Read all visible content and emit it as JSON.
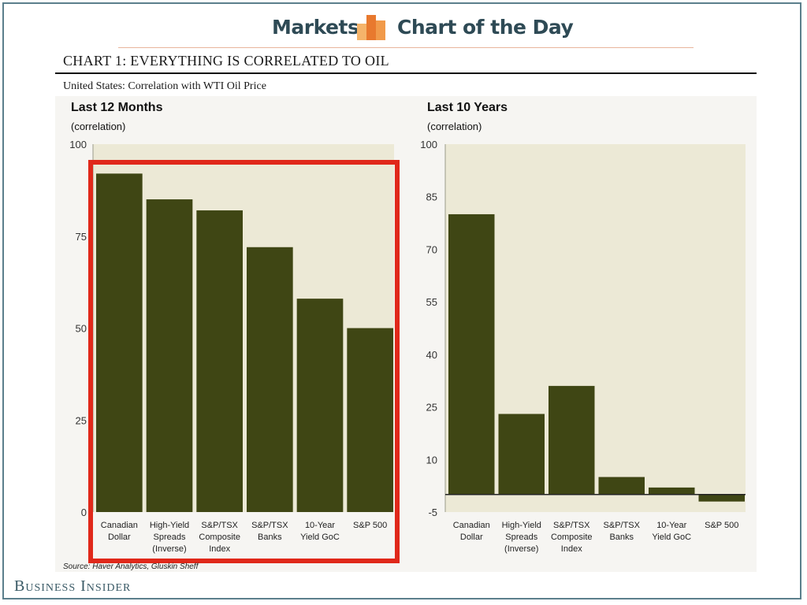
{
  "header": {
    "section_label": "Markets",
    "feature_label": "Chart of the Day",
    "logo_icon": "bar-chart-logo-icon",
    "colors": {
      "logo_light": "#f5b46a",
      "logo_dark": "#e8792e",
      "text": "#2e4a55"
    }
  },
  "page_title": "CHART 1: EVERYTHING IS CORRELATED TO OIL",
  "subtitle": "United States: Correlation with WTI Oil Price",
  "source": "Source: Haver Analytics, Gluskin Sheff",
  "brand": "Business Insider",
  "colors": {
    "bar": "#3f4614",
    "plot_area": "#ece9d6",
    "highlight_box": "#e0281a"
  },
  "chart_data": [
    {
      "type": "bar",
      "title": "Last 12 Months",
      "ylabel": "(correlation)",
      "categories": [
        [
          "Canadian",
          "Dollar"
        ],
        [
          "High-Yield",
          "Spreads",
          "(Inverse)"
        ],
        [
          "S&P/TSX",
          "Composite",
          "Index"
        ],
        [
          "S&P/TSX",
          "Banks"
        ],
        [
          "10-Year",
          "Yield GoC"
        ],
        [
          "S&P 500"
        ]
      ],
      "values": [
        92,
        85,
        82,
        72,
        58,
        50
      ],
      "ylim": [
        0,
        100
      ],
      "yticks": [
        0,
        25,
        50,
        75,
        100
      ],
      "highlighted": true
    },
    {
      "type": "bar",
      "title": "Last 10 Years",
      "ylabel": "(correlation)",
      "categories": [
        [
          "Canadian",
          "Dollar"
        ],
        [
          "High-Yield",
          "Spreads",
          "(Inverse)"
        ],
        [
          "S&P/TSX",
          "Composite",
          "Index"
        ],
        [
          "S&P/TSX",
          "Banks"
        ],
        [
          "10-Year",
          "Yield GoC"
        ],
        [
          "S&P 500"
        ]
      ],
      "values": [
        80,
        23,
        31,
        5,
        2,
        -2
      ],
      "ylim": [
        -5,
        100
      ],
      "yticks": [
        -5,
        10,
        25,
        40,
        55,
        70,
        85,
        100
      ],
      "highlighted": false
    }
  ]
}
